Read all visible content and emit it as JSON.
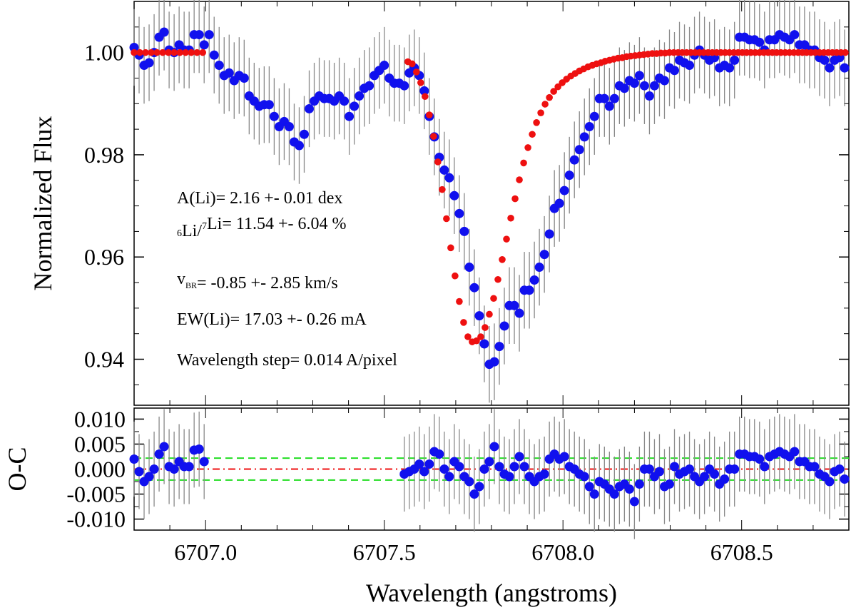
{
  "chart_data": [
    {
      "panel": "top",
      "type": "scatter",
      "ylabel": "Normalized Flux",
      "xlim": [
        6706.8,
        6708.8
      ],
      "ylim": [
        0.931,
        1.01
      ],
      "yticks": [
        0.94,
        0.96,
        0.98,
        1.0
      ],
      "ytick_labels": [
        "0.94",
        "0.96",
        "0.98",
        "1.00"
      ],
      "annotations": [
        {
          "parts": [
            {
              "t": "A(Li)=  2.16 +-  0.01 dex"
            }
          ]
        },
        {
          "parts": [
            {
              "t": "6",
              "s": "sup"
            },
            {
              "t": "Li/"
            },
            {
              "t": "7",
              "s": "sup"
            },
            {
              "t": "Li=  11.54 +-  6.04 %"
            }
          ]
        },
        {
          "parts": [
            {
              "t": "v"
            },
            {
              "t": "BR",
              "s": "sub"
            },
            {
              "t": "=  -0.85 +-  2.85 km/s"
            }
          ]
        },
        {
          "parts": [
            {
              "t": "EW(Li)= 17.03 +- 0.26 mA"
            }
          ]
        },
        {
          "parts": [
            {
              "t": "Wavelength step= 0.014 A/pixel"
            }
          ]
        }
      ],
      "series": [
        {
          "color": "#1010ee",
          "marker": "circle",
          "error": 0.0075,
          "x": [
            6706.8,
            6706.814,
            6706.828,
            6706.842,
            6706.856,
            6706.87,
            6706.884,
            6706.898,
            6706.912,
            6706.926,
            6706.94,
            6706.954,
            6706.968,
            6706.982,
            6706.996,
            6707.01,
            6707.024,
            6707.038,
            6707.052,
            6707.066,
            6707.08,
            6707.094,
            6707.108,
            6707.122,
            6707.136,
            6707.15,
            6707.164,
            6707.178,
            6707.192,
            6707.206,
            6707.22,
            6707.234,
            6707.248,
            6707.262,
            6707.276,
            6707.29,
            6707.304,
            6707.318,
            6707.332,
            6707.346,
            6707.36,
            6707.374,
            6707.388,
            6707.402,
            6707.416,
            6707.43,
            6707.444,
            6707.458,
            6707.472,
            6707.486,
            6707.5,
            6707.514,
            6707.528,
            6707.542,
            6707.556,
            6707.57,
            6707.584,
            6707.598,
            6707.612,
            6707.626,
            6707.64,
            6707.654,
            6707.668,
            6707.682,
            6707.696,
            6707.71,
            6707.724,
            6707.738,
            6707.752,
            6707.766,
            6707.78,
            6707.794,
            6707.808,
            6707.822,
            6707.836,
            6707.85,
            6707.864,
            6707.878,
            6707.892,
            6707.906,
            6707.92,
            6707.934,
            6707.948,
            6707.962,
            6707.976,
            6707.99,
            6708.004,
            6708.018,
            6708.032,
            6708.046,
            6708.06,
            6708.074,
            6708.088,
            6708.102,
            6708.116,
            6708.13,
            6708.144,
            6708.158,
            6708.172,
            6708.186,
            6708.2,
            6708.214,
            6708.228,
            6708.242,
            6708.256,
            6708.27,
            6708.284,
            6708.298,
            6708.312,
            6708.326,
            6708.34,
            6708.354,
            6708.368,
            6708.382,
            6708.396,
            6708.41,
            6708.424,
            6708.438,
            6708.452,
            6708.466,
            6708.48,
            6708.494,
            6708.508,
            6708.522,
            6708.536,
            6708.55,
            6708.564,
            6708.578,
            6708.592,
            6708.606,
            6708.62,
            6708.634,
            6708.648,
            6708.662,
            6708.676,
            6708.69,
            6708.704,
            6708.718,
            6708.732,
            6708.746,
            6708.76,
            6708.774,
            6708.788
          ],
          "y": [
            1.001,
            0.9995,
            0.9975,
            0.998,
            1.0,
            1.003,
            1.004,
            1.0005,
            1.0,
            1.0015,
            1.0005,
            1.0005,
            1.0035,
            1.0035,
            1.0015,
            1.0035,
            0.9995,
            0.9975,
            0.9955,
            0.996,
            0.9945,
            0.9955,
            0.995,
            0.9915,
            0.9905,
            0.9895,
            0.9898,
            0.9898,
            0.9875,
            0.9855,
            0.9865,
            0.9855,
            0.9825,
            0.9818,
            0.984,
            0.989,
            0.9905,
            0.9915,
            0.991,
            0.991,
            0.9905,
            0.9915,
            0.9905,
            0.9875,
            0.9895,
            0.9915,
            0.993,
            0.9935,
            0.9955,
            0.9965,
            0.9975,
            0.995,
            0.994,
            0.994,
            0.9935,
            0.996,
            0.997,
            0.9955,
            0.9925,
            0.9875,
            0.9835,
            0.9795,
            0.977,
            0.9755,
            0.972,
            0.9685,
            0.965,
            0.958,
            0.954,
            0.9485,
            0.943,
            0.939,
            0.9395,
            0.9425,
            0.9465,
            0.9505,
            0.9505,
            0.949,
            0.9535,
            0.9535,
            0.9555,
            0.958,
            0.9605,
            0.9645,
            0.9695,
            0.9705,
            0.973,
            0.976,
            0.979,
            0.981,
            0.9835,
            0.9855,
            0.9875,
            0.991,
            0.991,
            0.9895,
            0.991,
            0.9935,
            0.993,
            0.9945,
            0.994,
            0.9955,
            0.9935,
            0.9915,
            0.9935,
            0.995,
            0.9945,
            0.997,
            0.9965,
            0.9985,
            0.998,
            0.9975,
            0.9995,
            1.0005,
            0.9995,
            0.9985,
            0.999,
            0.997,
            0.9975,
            0.997,
            0.9985,
            1.003,
            1.003,
            1.0025,
            1.0025,
            1.002,
            1.0005,
            1.0025,
            1.0025,
            1.0035,
            1.003,
            1.0025,
            1.0035,
            1.0015,
            1.0015,
            1.0005,
            1.0005,
            0.999,
            0.9985,
            0.997,
            0.9985,
            0.999,
            0.997
          ]
        },
        {
          "color": "#ee1010",
          "marker": "circle",
          "x": [
            6706.8,
            6706.816,
            6706.832,
            6706.848,
            6706.864,
            6706.88,
            6706.896,
            6706.912,
            6706.928,
            6706.944,
            6706.96,
            6706.976,
            6706.992,
            6707.566,
            6707.578,
            6707.59,
            6707.602,
            6707.614,
            6707.626,
            6707.638,
            6707.65,
            6707.662,
            6707.674,
            6707.686,
            6707.698,
            6707.71,
            6707.722,
            6707.734,
            6707.746,
            6707.758,
            6707.77,
            6707.782,
            6707.794,
            6707.806,
            6707.818,
            6707.83,
            6707.842,
            6707.854,
            6707.866,
            6707.878,
            6707.89,
            6707.902,
            6707.914,
            6707.926,
            6707.938,
            6707.95,
            6707.962,
            6707.974,
            6707.986,
            6707.998,
            6708.01,
            6708.022,
            6708.034,
            6708.046,
            6708.058,
            6708.07,
            6708.082,
            6708.094,
            6708.106,
            6708.118,
            6708.13,
            6708.142,
            6708.154,
            6708.166,
            6708.178,
            6708.19,
            6708.202,
            6708.214,
            6708.226,
            6708.238,
            6708.25,
            6708.262,
            6708.274,
            6708.286,
            6708.298,
            6708.31,
            6708.322,
            6708.334,
            6708.346,
            6708.358,
            6708.37,
            6708.382,
            6708.394,
            6708.406,
            6708.418,
            6708.43,
            6708.442,
            6708.454,
            6708.466,
            6708.478,
            6708.49,
            6708.502,
            6708.514,
            6708.526,
            6708.538,
            6708.55,
            6708.562,
            6708.574,
            6708.586,
            6708.598,
            6708.61,
            6708.622,
            6708.634,
            6708.646,
            6708.658,
            6708.67,
            6708.682,
            6708.694,
            6708.706,
            6708.718,
            6708.73,
            6708.742,
            6708.754,
            6708.766,
            6708.778,
            6708.79
          ],
          "y": [
            1.0,
            1.0,
            1.0,
            1.0,
            1.0,
            1.0,
            1.0,
            1.0,
            1.0,
            1.0,
            1.0,
            1.0,
            1.0,
            0.9982,
            0.9978,
            0.9962,
            0.9941,
            0.9914,
            0.9878,
            0.9836,
            0.9786,
            0.9732,
            0.9675,
            0.9618,
            0.9563,
            0.9513,
            0.9472,
            0.9444,
            0.9434,
            0.9436,
            0.9444,
            0.9462,
            0.9488,
            0.9519,
            0.9556,
            0.9595,
            0.9635,
            0.9676,
            0.9714,
            0.9751,
            0.9784,
            0.9814,
            0.984,
            0.9863,
            0.9882,
            0.9899,
            0.9912,
            0.9924,
            0.9933,
            0.9941,
            0.9948,
            0.9954,
            0.9959,
            0.9964,
            0.9968,
            0.9972,
            0.9975,
            0.9978,
            0.998,
            0.9983,
            0.9985,
            0.9987,
            0.9989,
            0.999,
            0.9992,
            0.9993,
            0.9994,
            0.9995,
            0.9996,
            0.9997,
            0.9998,
            0.9998,
            0.9999,
            0.9999,
            1.0,
            1.0,
            1.0,
            1.0,
            1.0,
            1.0,
            1.0,
            1.0,
            1.0,
            1.0,
            1.0,
            1.0,
            1.0,
            1.0,
            1.0,
            1.0,
            1.0,
            1.0,
            1.0,
            1.0,
            1.0,
            1.0,
            1.0,
            1.0,
            1.0,
            1.0,
            1.0,
            1.0,
            1.0,
            1.0,
            1.0,
            1.0,
            1.0,
            1.0,
            1.0,
            1.0,
            1.0,
            1.0,
            1.0,
            1.0,
            1.0,
            1.0
          ]
        }
      ]
    },
    {
      "panel": "bottom",
      "type": "scatter",
      "xlabel": "Wavelength (angstroms)",
      "ylabel": "O-C",
      "xlim": [
        6706.8,
        6708.8
      ],
      "ylim": [
        -0.0122,
        0.0122
      ],
      "xticks": [
        6707.0,
        6707.5,
        6708.0,
        6708.5
      ],
      "xtick_labels": [
        "6707.0",
        "6707.5",
        "6708.0",
        "6708.5"
      ],
      "yticks": [
        -0.01,
        -0.005,
        0.0,
        0.005,
        0.01
      ],
      "ytick_labels": [
        "-0.010",
        "-0.005",
        "0.000",
        "0.005",
        "0.010"
      ],
      "hlines": [
        {
          "y": 0.0,
          "color": "#ee1010",
          "style": "dashdot"
        },
        {
          "y": 0.0022,
          "color": "#22dd22",
          "style": "dashed"
        },
        {
          "y": -0.0022,
          "color": "#22dd22",
          "style": "dashed"
        }
      ],
      "series": [
        {
          "color": "#1010ee",
          "marker": "circle",
          "error": 0.0075,
          "x": [
            6706.8,
            6706.814,
            6706.828,
            6706.842,
            6706.856,
            6706.87,
            6706.884,
            6706.898,
            6706.912,
            6706.926,
            6706.94,
            6706.954,
            6706.968,
            6706.982,
            6706.996,
            6707.556,
            6707.57,
            6707.584,
            6707.598,
            6707.612,
            6707.626,
            6707.64,
            6707.654,
            6707.668,
            6707.682,
            6707.696,
            6707.71,
            6707.724,
            6707.738,
            6707.752,
            6707.766,
            6707.78,
            6707.794,
            6707.808,
            6707.822,
            6707.836,
            6707.85,
            6707.864,
            6707.878,
            6707.892,
            6707.906,
            6707.92,
            6707.934,
            6707.948,
            6707.962,
            6707.976,
            6707.99,
            6708.004,
            6708.018,
            6708.032,
            6708.046,
            6708.06,
            6708.074,
            6708.088,
            6708.102,
            6708.116,
            6708.13,
            6708.144,
            6708.158,
            6708.172,
            6708.186,
            6708.2,
            6708.214,
            6708.228,
            6708.242,
            6708.256,
            6708.27,
            6708.284,
            6708.298,
            6708.312,
            6708.326,
            6708.34,
            6708.354,
            6708.368,
            6708.382,
            6708.396,
            6708.41,
            6708.424,
            6708.438,
            6708.452,
            6708.466,
            6708.48,
            6708.494,
            6708.508,
            6708.522,
            6708.536,
            6708.55,
            6708.564,
            6708.578,
            6708.592,
            6708.606,
            6708.62,
            6708.634,
            6708.648,
            6708.662,
            6708.676,
            6708.69,
            6708.704,
            6708.718,
            6708.732,
            6708.746,
            6708.76,
            6708.774,
            6708.788
          ],
          "y": [
            0.002,
            -0.0005,
            -0.0025,
            -0.0015,
            0.0,
            0.003,
            0.0045,
            0.0005,
            0.0,
            0.0015,
            0.0005,
            0.0005,
            0.0038,
            0.004,
            0.0015,
            -0.001,
            -0.0005,
            0.0,
            0.001,
            -0.0005,
            0.001,
            0.0035,
            0.003,
            0.0,
            -0.0015,
            0.0015,
            0.0005,
            -0.0015,
            -0.0025,
            -0.005,
            -0.0035,
            0.0,
            0.0015,
            0.0045,
            0.0005,
            -0.001,
            -0.0015,
            0.0005,
            0.0025,
            0.0005,
            -0.0015,
            -0.0025,
            -0.0015,
            -0.001,
            0.002,
            0.003,
            0.002,
            0.0025,
            0.0005,
            0.0,
            -0.001,
            -0.0015,
            -0.0035,
            -0.005,
            -0.0025,
            -0.003,
            -0.004,
            -0.005,
            -0.0035,
            -0.003,
            -0.004,
            -0.0065,
            -0.003,
            0.0,
            0.0,
            -0.0015,
            -0.0005,
            -0.0035,
            -0.003,
            0.0005,
            -0.001,
            -0.0005,
            0.0,
            -0.0015,
            -0.0025,
            -0.0015,
            0.0,
            -0.001,
            -0.003,
            -0.002,
            0.0,
            0.0,
            0.003,
            0.003,
            0.0025,
            0.0025,
            0.002,
            0.0005,
            0.0025,
            0.003,
            0.0035,
            0.003,
            0.0025,
            0.0035,
            0.0015,
            0.0015,
            0.0005,
            0.0005,
            -0.001,
            -0.0015,
            -0.0025,
            -0.0005,
            0.0,
            -0.002
          ]
        }
      ]
    }
  ]
}
